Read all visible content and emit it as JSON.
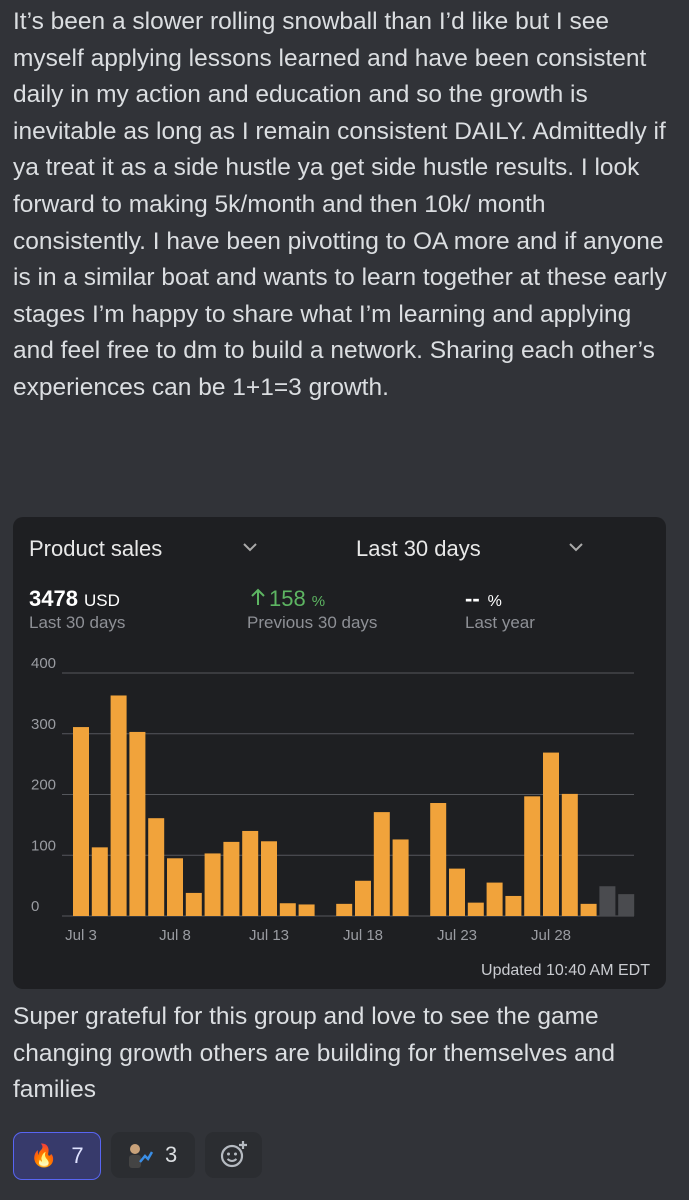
{
  "message": {
    "text": "It’s been a slower rolling snowball than I’d like but I see myself applying lessons learned and have been consistent daily in my action and education and so the growth is inevitable as long as I remain consistent DAILY. Admittedly if ya treat it as a side hustle ya get side hustle results. I look forward to making 5k/month and then 10k/ month consistently. I have been pivotting to OA more and if anyone is in a similar boat and wants to learn together at these early stages I’m happy to share what I’m learning and applying and feel free to dm to build a network. Sharing each other’s experiences can be 1+1=3 growth.",
    "footer_text": "Super grateful for this group and love to see the game changing growth others are building for themselves and families"
  },
  "card": {
    "metric_dropdown": "Product sales",
    "range_dropdown": "Last 30 days",
    "stats": [
      {
        "value": "3478",
        "unit": "USD",
        "label": "Last 30 days"
      },
      {
        "value": "158",
        "unit": "%",
        "label": "Previous 30 days"
      },
      {
        "value": "--",
        "unit": "%",
        "label": "Last year"
      }
    ],
    "updated": "Updated 10:40 AM EDT"
  },
  "chart_data": {
    "type": "bar",
    "categories": [
      "Jul 3",
      null,
      null,
      null,
      null,
      "Jul 8",
      null,
      null,
      null,
      null,
      "Jul 13",
      null,
      null,
      null,
      null,
      "Jul 18",
      null,
      null,
      null,
      null,
      "Jul 23",
      null,
      null,
      null,
      null,
      "Jul 28",
      null,
      null,
      null,
      null
    ],
    "values": [
      311,
      113,
      363,
      303,
      161,
      95,
      38,
      103,
      122,
      140,
      123,
      21,
      19,
      0,
      20,
      58,
      171,
      126,
      0,
      186,
      78,
      22,
      55,
      33,
      197,
      269,
      201,
      20,
      49,
      36
    ],
    "colors": [
      "#f1a33b",
      "#f1a33b",
      "#f1a33b",
      "#f1a33b",
      "#f1a33b",
      "#f1a33b",
      "#f1a33b",
      "#f1a33b",
      "#f1a33b",
      "#f1a33b",
      "#f1a33b",
      "#f1a33b",
      "#f1a33b",
      "#f1a33b",
      "#f1a33b",
      "#f1a33b",
      "#f1a33b",
      "#f1a33b",
      "#f1a33b",
      "#f1a33b",
      "#f1a33b",
      "#f1a33b",
      "#f1a33b",
      "#f1a33b",
      "#f1a33b",
      "#f1a33b",
      "#f1a33b",
      "#f1a33b",
      "#4a4b4f",
      "#4a4b4f"
    ],
    "ylim": [
      0,
      400
    ],
    "yticks": [
      0,
      100,
      200,
      300,
      400
    ],
    "grid": true
  },
  "reactions": [
    {
      "emoji": "🔥",
      "count": 7
    },
    {
      "count": 3
    }
  ]
}
